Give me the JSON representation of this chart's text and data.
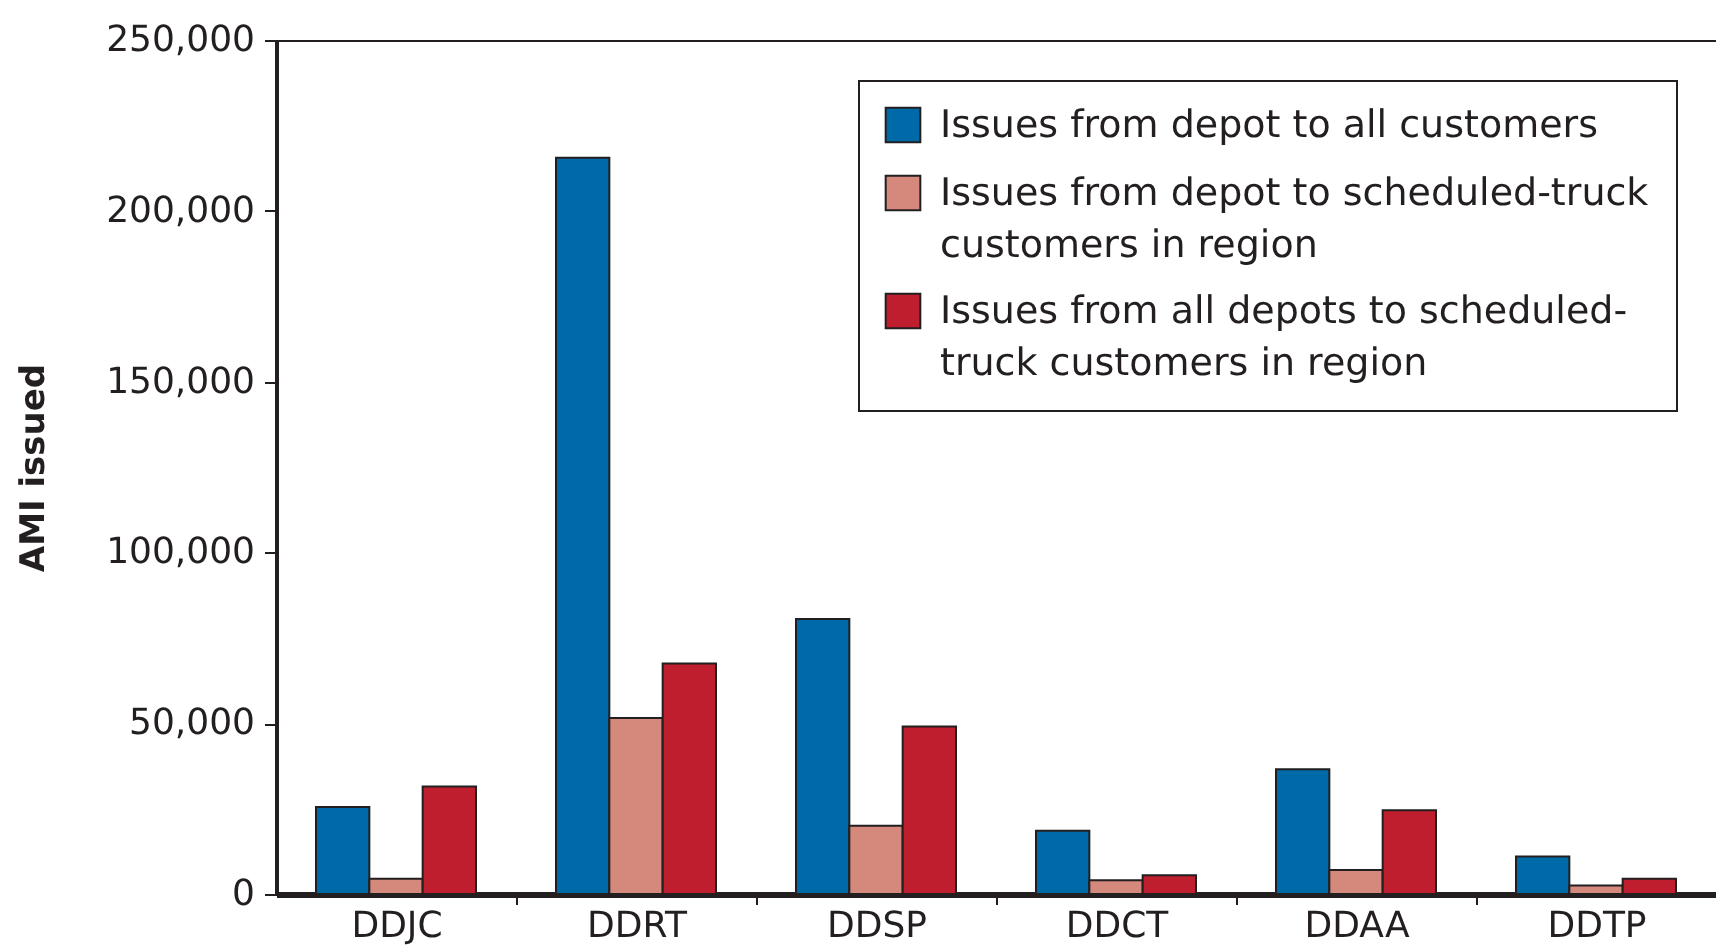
{
  "chart_data": {
    "type": "bar",
    "ylabel": "AMI issued",
    "categories": [
      "DDJC",
      "DDRT",
      "DDSP",
      "DDCT",
      "DDAA",
      "DDTP"
    ],
    "series": [
      {
        "name": "Issues from depot to all customers",
        "color": "#006aa8",
        "values": [
          25500,
          215500,
          80500,
          18500,
          36500,
          11000
        ]
      },
      {
        "name": "Issues from depot to scheduled-truck customers in region",
        "color": "#d4897c",
        "values": [
          4500,
          51500,
          20000,
          4000,
          7000,
          2500
        ]
      },
      {
        "name": "Issues from all depots to scheduled-truck customers in region",
        "color": "#be1e2d",
        "values": [
          31500,
          67500,
          49000,
          5500,
          24500,
          4500
        ]
      }
    ],
    "ylim": [
      0,
      250000
    ],
    "yticks": [
      0,
      {
        "value": 50000,
        "label": "50,000"
      },
      {
        "value": 100000,
        "label": "100,000"
      },
      {
        "value": 150000,
        "label": "150,000"
      },
      {
        "value": 200000,
        "label": "200,000"
      },
      {
        "value": 250000,
        "label": "250,000"
      }
    ],
    "legend": "top right"
  }
}
